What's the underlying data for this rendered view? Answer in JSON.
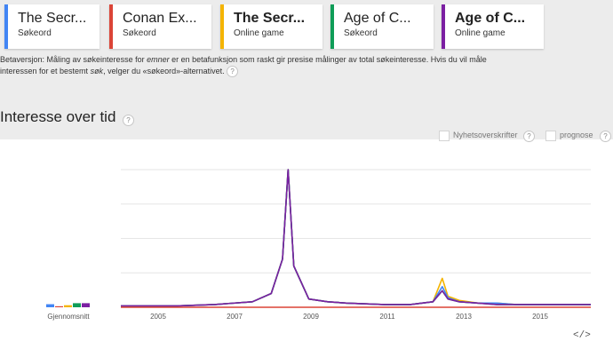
{
  "terms": [
    {
      "title": "The Secr...",
      "subtitle": "Søkeord",
      "bold": false,
      "color": "#4285f4"
    },
    {
      "title": "Conan Ex...",
      "subtitle": "Søkeord",
      "bold": false,
      "color": "#db4437"
    },
    {
      "title": "The Secr...",
      "subtitle": "Online game",
      "bold": true,
      "color": "#f4b400"
    },
    {
      "title": "Age of C...",
      "subtitle": "Søkeord",
      "bold": false,
      "color": "#0f9d58"
    },
    {
      "title": "Age of C...",
      "subtitle": "Online game",
      "bold": true,
      "color": "#7b1fa2"
    }
  ],
  "beta": {
    "part1": "Betaversjon: Måling av søkeinteresse for ",
    "emph1": "emner",
    "part2": " er en betafunksjon som raskt gir presise målinger av total søkeinteresse. Hvis du vil måle interessen for et bestemt ",
    "emph2": "søk",
    "part3": ", velger du «søkeord»-alternativet."
  },
  "help_glyph": "?",
  "section_title": "Interesse over tid",
  "options": {
    "news": "Nyhetsoverskrifter",
    "forecast": "prognose"
  },
  "embed_glyph": "</>",
  "chart_data": {
    "type": "line",
    "average_label": "Gjennomsnitt",
    "x_ticks": [
      "2005",
      "2007",
      "2009",
      "2011",
      "2013",
      "2015"
    ],
    "xlim": [
      2004,
      2016.5
    ],
    "ylim": [
      0,
      100
    ],
    "averages": [
      {
        "color": "#4285f4",
        "value": 3
      },
      {
        "color": "#db4437",
        "value": 1
      },
      {
        "color": "#f4b400",
        "value": 2
      },
      {
        "color": "#0f9d58",
        "value": 4
      },
      {
        "color": "#7b1fa2",
        "value": 4
      }
    ],
    "series": [
      {
        "color": "#f4b400",
        "x": [
          2004.0,
          2005.5,
          2006.5,
          2007.5,
          2008.0,
          2008.3,
          2008.45,
          2008.6,
          2009.0,
          2009.5,
          2010.0,
          2011.0,
          2011.7,
          2012.3,
          2012.55,
          2012.7,
          2013.0,
          2013.5,
          2014.0,
          2014.5,
          2015.0,
          2015.5,
          2016.0,
          2016.5
        ],
        "y": [
          1,
          1,
          2,
          4,
          10,
          35,
          100,
          30,
          6,
          4,
          3,
          2,
          2,
          4,
          21,
          8,
          5,
          3,
          3,
          2,
          2,
          2,
          2,
          2
        ]
      },
      {
        "color": "#4285f4",
        "x": [
          2004.0,
          2005.5,
          2006.5,
          2007.5,
          2008.0,
          2008.3,
          2008.45,
          2008.6,
          2009.0,
          2009.5,
          2010.0,
          2011.0,
          2011.7,
          2012.3,
          2012.55,
          2012.7,
          2013.0,
          2013.5,
          2014.0,
          2014.5,
          2015.0,
          2015.5,
          2016.0,
          2016.5
        ],
        "y": [
          1,
          1,
          2,
          4,
          10,
          35,
          100,
          30,
          6,
          4,
          3,
          2,
          2,
          4,
          15,
          7,
          4,
          3,
          3,
          2,
          2,
          2,
          2,
          2
        ]
      },
      {
        "color": "#0f9d58",
        "x": [
          2004.0,
          2005.5,
          2006.5,
          2007.5,
          2008.0,
          2008.3,
          2008.45,
          2008.6,
          2009.0,
          2009.5,
          2010.0,
          2011.0,
          2011.7,
          2012.3,
          2012.55,
          2012.7,
          2013.0,
          2013.5,
          2014.0,
          2014.5,
          2015.0,
          2015.5,
          2016.0,
          2016.5
        ],
        "y": [
          1,
          1,
          2,
          4,
          10,
          35,
          100,
          30,
          6,
          4,
          3,
          2,
          2,
          4,
          12,
          6,
          4,
          3,
          2,
          2,
          2,
          2,
          2,
          2
        ]
      },
      {
        "color": "#7b1fa2",
        "x": [
          2004.0,
          2005.5,
          2006.5,
          2007.5,
          2008.0,
          2008.3,
          2008.45,
          2008.6,
          2009.0,
          2009.5,
          2010.0,
          2011.0,
          2011.7,
          2012.3,
          2012.55,
          2012.7,
          2013.0,
          2013.5,
          2014.0,
          2014.5,
          2015.0,
          2015.5,
          2016.0,
          2016.5
        ],
        "y": [
          1,
          1,
          2,
          4,
          10,
          35,
          100,
          30,
          6,
          4,
          3,
          2,
          2,
          4,
          12,
          6,
          4,
          3,
          2,
          2,
          2,
          2,
          2,
          2
        ]
      },
      {
        "color": "#db4437",
        "x": [
          2004.0,
          2016.5
        ],
        "y": [
          0,
          0
        ]
      }
    ]
  }
}
